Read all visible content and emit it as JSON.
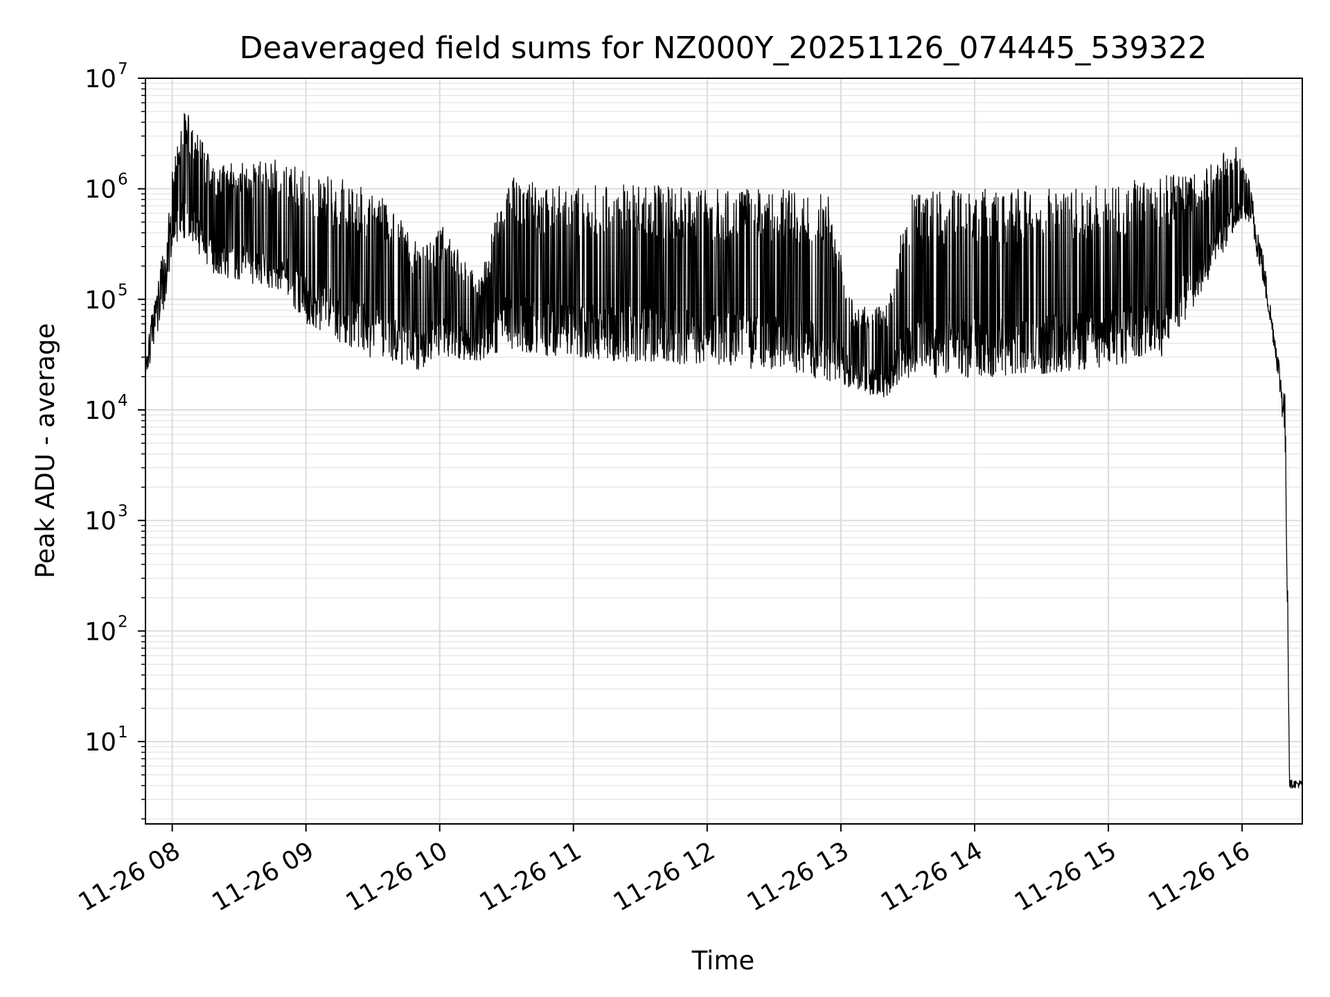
{
  "chart_data": {
    "type": "line",
    "title": "Deaveraged field sums for NZ000Y_20251126_074445_539322",
    "xlabel": "Time",
    "ylabel": "Peak ADU - average",
    "yscale": "log",
    "ylim": [
      1.8,
      10000000
    ],
    "xlim_hours": [
      7.8,
      16.45
    ],
    "grid": true,
    "legend": "none",
    "line_color": "#000000",
    "x_ticks": [
      {
        "hour": 8,
        "label": "11-26 08"
      },
      {
        "hour": 9,
        "label": "11-26 09"
      },
      {
        "hour": 10,
        "label": "11-26 10"
      },
      {
        "hour": 11,
        "label": "11-26 11"
      },
      {
        "hour": 12,
        "label": "11-26 12"
      },
      {
        "hour": 13,
        "label": "11-26 13"
      },
      {
        "hour": 14,
        "label": "11-26 14"
      },
      {
        "hour": 15,
        "label": "11-26 15"
      },
      {
        "hour": 16,
        "label": "11-26 16"
      }
    ],
    "y_ticks": [
      {
        "value": 10,
        "base": "10",
        "exp": "1"
      },
      {
        "value": 100,
        "base": "10",
        "exp": "2"
      },
      {
        "value": 1000,
        "base": "10",
        "exp": "3"
      },
      {
        "value": 10000,
        "base": "10",
        "exp": "4"
      },
      {
        "value": 100000,
        "base": "10",
        "exp": "5"
      },
      {
        "value": 1000000,
        "base": "10",
        "exp": "6"
      },
      {
        "value": 10000000,
        "base": "10",
        "exp": "7"
      }
    ],
    "series": [
      {
        "name": "Peak ADU - average",
        "envelope": [
          {
            "hour": 7.8,
            "lo": 18000,
            "hi": 35000
          },
          {
            "hour": 7.95,
            "lo": 90000,
            "hi": 400000
          },
          {
            "hour": 8.0,
            "lo": 300000,
            "hi": 1500000
          },
          {
            "hour": 8.1,
            "lo": 300000,
            "hi": 5500000
          },
          {
            "hour": 8.3,
            "lo": 150000,
            "hi": 1700000
          },
          {
            "hour": 8.6,
            "lo": 120000,
            "hi": 1700000
          },
          {
            "hour": 8.8,
            "lo": 100000,
            "hi": 1900000
          },
          {
            "hour": 9.0,
            "lo": 50000,
            "hi": 1400000
          },
          {
            "hour": 9.3,
            "lo": 30000,
            "hi": 1200000
          },
          {
            "hour": 9.6,
            "lo": 22000,
            "hi": 800000
          },
          {
            "hour": 9.85,
            "lo": 20000,
            "hi": 300000
          },
          {
            "hour": 10.0,
            "lo": 25000,
            "hi": 500000
          },
          {
            "hour": 10.3,
            "lo": 25000,
            "hi": 150000
          },
          {
            "hour": 10.5,
            "lo": 30000,
            "hi": 1300000
          },
          {
            "hour": 10.8,
            "lo": 25000,
            "hi": 1100000
          },
          {
            "hour": 11.5,
            "lo": 22000,
            "hi": 1100000
          },
          {
            "hour": 12.0,
            "lo": 20000,
            "hi": 1000000
          },
          {
            "hour": 12.6,
            "lo": 18000,
            "hi": 1000000
          },
          {
            "hour": 12.9,
            "lo": 15000,
            "hi": 900000
          },
          {
            "hour": 13.1,
            "lo": 14000,
            "hi": 80000
          },
          {
            "hour": 13.35,
            "lo": 11000,
            "hi": 100000
          },
          {
            "hour": 13.5,
            "lo": 16000,
            "hi": 900000
          },
          {
            "hour": 14.0,
            "lo": 16000,
            "hi": 1000000
          },
          {
            "hour": 14.5,
            "lo": 17000,
            "hi": 1000000
          },
          {
            "hour": 15.0,
            "lo": 20000,
            "hi": 1100000
          },
          {
            "hour": 15.4,
            "lo": 25000,
            "hi": 1300000
          },
          {
            "hour": 15.7,
            "lo": 100000,
            "hi": 1500000
          },
          {
            "hour": 15.95,
            "lo": 400000,
            "hi": 2600000
          },
          {
            "hour": 16.05,
            "lo": 500000,
            "hi": 1300000
          },
          {
            "hour": 16.15,
            "lo": 150000,
            "hi": 300000
          },
          {
            "hour": 16.25,
            "lo": 30000,
            "hi": 45000
          },
          {
            "hour": 16.32,
            "lo": 5000,
            "hi": 15000
          },
          {
            "hour": 16.34,
            "lo": 100,
            "hi": 500
          },
          {
            "hour": 16.355,
            "lo": 3.8,
            "hi": 4.5
          },
          {
            "hour": 16.45,
            "lo": 3.8,
            "hi": 4.5
          }
        ]
      }
    ]
  }
}
